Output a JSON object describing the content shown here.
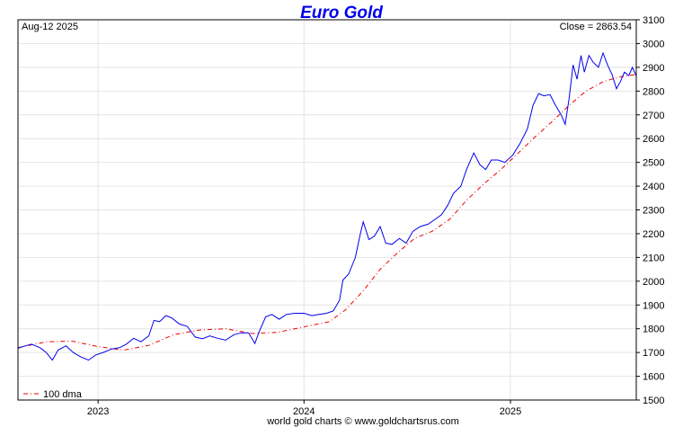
{
  "chart_data": {
    "type": "line",
    "title": "Euro Gold",
    "date_label": "Aug-12  2025",
    "close_label": "Close = 2863.54",
    "footer": "world gold charts © www.goldchartsrus.com",
    "ylim": [
      1500,
      3100
    ],
    "yticks": [
      1500,
      1600,
      1700,
      1800,
      1900,
      2000,
      2100,
      2200,
      2300,
      2400,
      2500,
      2600,
      2700,
      2800,
      2900,
      3000,
      3100
    ],
    "xlim": [
      "2022-08-12",
      "2025-08-12"
    ],
    "xticks": [
      {
        "label": "2023",
        "date": "2023-01-01"
      },
      {
        "label": "2024",
        "date": "2024-01-01"
      },
      {
        "label": "2025",
        "date": "2025-01-01"
      }
    ],
    "grid": true,
    "legend": "bottom-left",
    "colors": {
      "price": "#0000ee",
      "dma": "#ee0000",
      "grid": "#e4e4e4"
    },
    "series": [
      {
        "key": "price",
        "values": [
          [
            "2022-08-12",
            1718
          ],
          [
            "2022-08-25",
            1728
          ],
          [
            "2022-09-05",
            1735
          ],
          [
            "2022-09-20",
            1720
          ],
          [
            "2022-10-01",
            1700
          ],
          [
            "2022-10-12",
            1668
          ],
          [
            "2022-10-22",
            1710
          ],
          [
            "2022-11-05",
            1728
          ],
          [
            "2022-11-18",
            1700
          ],
          [
            "2022-12-01",
            1682
          ],
          [
            "2022-12-15",
            1668
          ],
          [
            "2022-12-28",
            1690
          ],
          [
            "2023-01-10",
            1700
          ],
          [
            "2023-01-25",
            1715
          ],
          [
            "2023-02-08",
            1720
          ],
          [
            "2023-02-20",
            1735
          ],
          [
            "2023-03-05",
            1760
          ],
          [
            "2023-03-18",
            1745
          ],
          [
            "2023-04-01",
            1770
          ],
          [
            "2023-04-10",
            1835
          ],
          [
            "2023-04-20",
            1830
          ],
          [
            "2023-05-01",
            1855
          ],
          [
            "2023-05-12",
            1845
          ],
          [
            "2023-05-25",
            1820
          ],
          [
            "2023-06-08",
            1810
          ],
          [
            "2023-06-22",
            1765
          ],
          [
            "2023-07-05",
            1758
          ],
          [
            "2023-07-18",
            1770
          ],
          [
            "2023-08-01",
            1760
          ],
          [
            "2023-08-15",
            1752
          ],
          [
            "2023-08-30",
            1775
          ],
          [
            "2023-09-12",
            1783
          ],
          [
            "2023-09-25",
            1782
          ],
          [
            "2023-10-06",
            1738
          ],
          [
            "2023-10-14",
            1790
          ],
          [
            "2023-10-25",
            1850
          ],
          [
            "2023-11-05",
            1860
          ],
          [
            "2023-11-18",
            1840
          ],
          [
            "2023-12-01",
            1860
          ],
          [
            "2023-12-15",
            1865
          ],
          [
            "2024-01-01",
            1865
          ],
          [
            "2024-01-15",
            1855
          ],
          [
            "2024-01-28",
            1860
          ],
          [
            "2024-02-10",
            1865
          ],
          [
            "2024-02-22",
            1875
          ],
          [
            "2024-03-04",
            1920
          ],
          [
            "2024-03-10",
            2005
          ],
          [
            "2024-03-20",
            2030
          ],
          [
            "2024-04-01",
            2100
          ],
          [
            "2024-04-10",
            2200
          ],
          [
            "2024-04-15",
            2250
          ],
          [
            "2024-04-25",
            2175
          ],
          [
            "2024-05-05",
            2190
          ],
          [
            "2024-05-15",
            2230
          ],
          [
            "2024-05-25",
            2160
          ],
          [
            "2024-06-05",
            2155
          ],
          [
            "2024-06-18",
            2180
          ],
          [
            "2024-06-30",
            2160
          ],
          [
            "2024-07-12",
            2210
          ],
          [
            "2024-07-25",
            2230
          ],
          [
            "2024-08-08",
            2240
          ],
          [
            "2024-08-20",
            2260
          ],
          [
            "2024-09-01",
            2280
          ],
          [
            "2024-09-12",
            2320
          ],
          [
            "2024-09-22",
            2370
          ],
          [
            "2024-10-05",
            2400
          ],
          [
            "2024-10-15",
            2470
          ],
          [
            "2024-10-28",
            2540
          ],
          [
            "2024-11-08",
            2490
          ],
          [
            "2024-11-18",
            2470
          ],
          [
            "2024-11-28",
            2510
          ],
          [
            "2024-12-10",
            2510
          ],
          [
            "2024-12-22",
            2500
          ],
          [
            "2025-01-05",
            2530
          ],
          [
            "2025-01-18",
            2580
          ],
          [
            "2025-01-31",
            2640
          ],
          [
            "2025-02-10",
            2740
          ],
          [
            "2025-02-20",
            2790
          ],
          [
            "2025-03-01",
            2780
          ],
          [
            "2025-03-12",
            2785
          ],
          [
            "2025-03-22",
            2740
          ],
          [
            "2025-04-01",
            2700
          ],
          [
            "2025-04-08",
            2660
          ],
          [
            "2025-04-15",
            2770
          ],
          [
            "2025-04-22",
            2910
          ],
          [
            "2025-04-29",
            2850
          ],
          [
            "2025-05-06",
            2950
          ],
          [
            "2025-05-12",
            2880
          ],
          [
            "2025-05-20",
            2950
          ],
          [
            "2025-05-28",
            2920
          ],
          [
            "2025-06-06",
            2900
          ],
          [
            "2025-06-14",
            2960
          ],
          [
            "2025-06-22",
            2910
          ],
          [
            "2025-06-30",
            2870
          ],
          [
            "2025-07-08",
            2810
          ],
          [
            "2025-07-15",
            2840
          ],
          [
            "2025-07-22",
            2880
          ],
          [
            "2025-07-30",
            2865
          ],
          [
            "2025-08-05",
            2900
          ],
          [
            "2025-08-12",
            2863.54
          ]
        ]
      },
      {
        "key": "dma",
        "name": "100 dma",
        "values": [
          [
            "2022-08-12",
            1720
          ],
          [
            "2022-10-01",
            1745
          ],
          [
            "2022-11-15",
            1748
          ],
          [
            "2023-01-01",
            1725
          ],
          [
            "2023-02-15",
            1710
          ],
          [
            "2023-04-01",
            1730
          ],
          [
            "2023-05-15",
            1775
          ],
          [
            "2023-07-01",
            1795
          ],
          [
            "2023-08-15",
            1800
          ],
          [
            "2023-10-01",
            1780
          ],
          [
            "2023-11-15",
            1785
          ],
          [
            "2024-01-01",
            1808
          ],
          [
            "2024-02-15",
            1830
          ],
          [
            "2024-03-15",
            1880
          ],
          [
            "2024-04-15",
            1960
          ],
          [
            "2024-05-15",
            2050
          ],
          [
            "2024-06-15",
            2120
          ],
          [
            "2024-07-15",
            2180
          ],
          [
            "2024-08-15",
            2210
          ],
          [
            "2024-09-15",
            2260
          ],
          [
            "2024-10-15",
            2340
          ],
          [
            "2024-11-15",
            2410
          ],
          [
            "2024-12-15",
            2470
          ],
          [
            "2025-01-15",
            2540
          ],
          [
            "2025-02-15",
            2610
          ],
          [
            "2025-03-15",
            2670
          ],
          [
            "2025-04-15",
            2740
          ],
          [
            "2025-05-15",
            2800
          ],
          [
            "2025-06-15",
            2840
          ],
          [
            "2025-07-15",
            2860
          ],
          [
            "2025-08-12",
            2870
          ]
        ]
      }
    ]
  }
}
